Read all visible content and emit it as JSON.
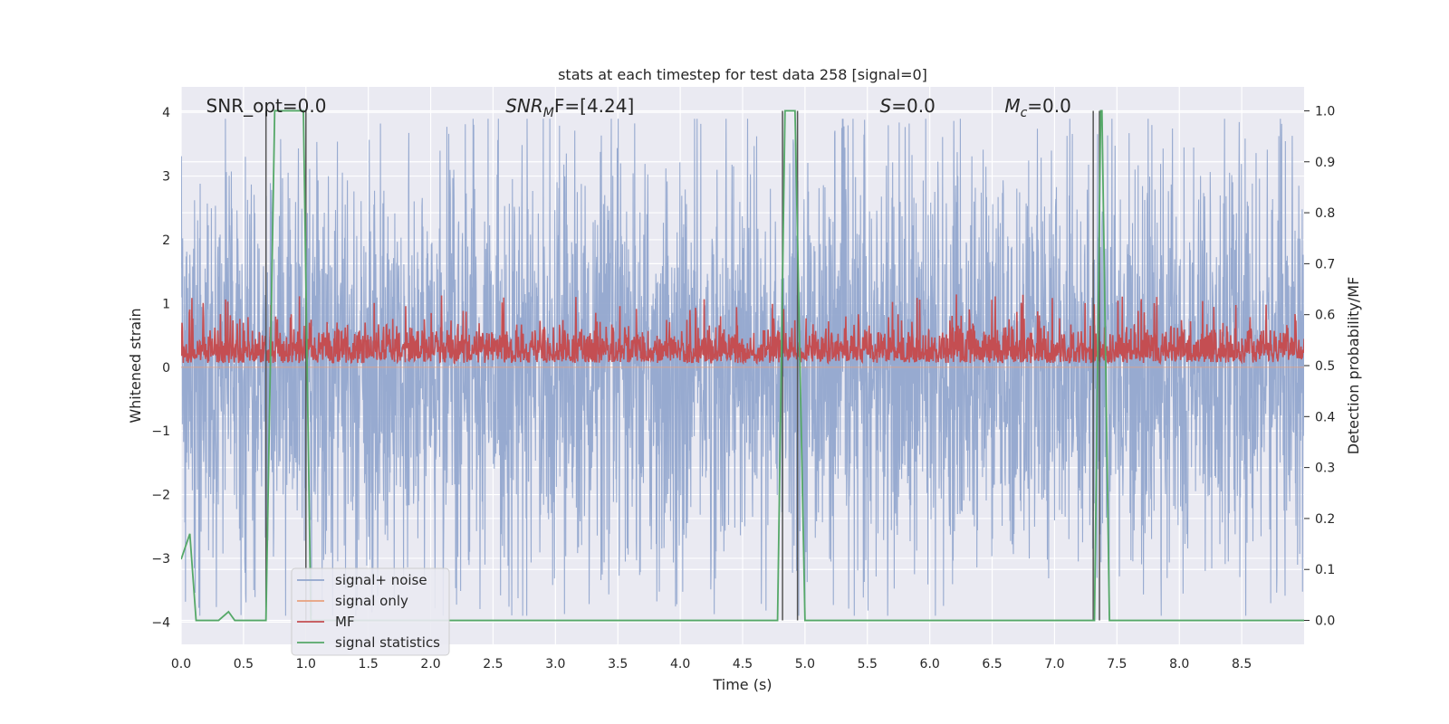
{
  "chart_data": {
    "type": "line",
    "title": "stats at each timestep for test data 258 [signal=0]",
    "xlabel": "Time (s)",
    "ylabel": "Whitened strain",
    "y2label": "Detection probability/MF",
    "xlim": [
      0,
      9.0
    ],
    "ylim": [
      -4.35,
      4.4
    ],
    "y2lim": [
      -0.047,
      1.047
    ],
    "xticks": [
      0.0,
      0.5,
      1.0,
      1.5,
      2.0,
      2.5,
      3.0,
      3.5,
      4.0,
      4.5,
      5.0,
      5.5,
      6.0,
      6.5,
      7.0,
      7.5,
      8.0,
      8.5
    ],
    "xtick_labels": [
      "0.0",
      "0.5",
      "1.0",
      "1.5",
      "2.0",
      "2.5",
      "3.0",
      "3.5",
      "4.0",
      "4.5",
      "5.0",
      "5.5",
      "6.0",
      "6.5",
      "7.0",
      "7.5",
      "8.0",
      "8.5"
    ],
    "yticks": [
      -4,
      -3,
      -2,
      -1,
      0,
      1,
      2,
      3,
      4
    ],
    "ytick_labels": [
      "−4",
      "−3",
      "−2",
      "−1",
      "0",
      "1",
      "2",
      "3",
      "4"
    ],
    "y2ticks": [
      0.0,
      0.1,
      0.2,
      0.3,
      0.4,
      0.5,
      0.6,
      0.7,
      0.8,
      0.9,
      1.0
    ],
    "y2tick_labels": [
      "0.0",
      "0.1",
      "0.2",
      "0.3",
      "0.4",
      "0.5",
      "0.6",
      "0.7",
      "0.8",
      "0.9",
      "1.0"
    ],
    "grid": true,
    "legend_position": "bottom-left",
    "annotations": [
      {
        "text": "SNR_opt=0.0",
        "x": 0.2
      },
      {
        "text": "SNR",
        "sub": "M",
        "tail": "F=[4.24]",
        "italic": true,
        "x": 2.6
      },
      {
        "text": "S",
        "tail": "=0.0",
        "italic": true,
        "x": 5.6
      },
      {
        "text": "M",
        "sub": "c",
        "tail": "=0.0",
        "italic": true,
        "x": 6.6
      }
    ],
    "series": [
      {
        "name": "signal+ noise",
        "color": "#92a6cd",
        "axis": "left",
        "kind": "noise",
        "amplitude_typical": 1.6,
        "amplitude_peak": 3.9,
        "range": [
          0,
          9.0
        ]
      },
      {
        "name": "signal only",
        "color": "#e8a17e",
        "axis": "left",
        "kind": "flat",
        "value": 0
      },
      {
        "name": "MF",
        "color": "#c44e52",
        "axis": "right",
        "kind": "band",
        "baseline": 0.5,
        "band_low": 0.5,
        "band_high": 0.6,
        "peak": 0.64
      },
      {
        "name": "signal statistics",
        "color": "#55a868",
        "axis": "right",
        "kind": "steps",
        "x": [
          0.0,
          0.07,
          0.12,
          0.3,
          0.38,
          0.43,
          0.68,
          0.75,
          0.98,
          1.04,
          4.5,
          4.63,
          4.78,
          4.84,
          4.92,
          5.0,
          7.32,
          7.37,
          7.38,
          7.44,
          9.0
        ],
        "y": [
          0.12,
          0.17,
          0.0,
          0.0,
          0.017,
          0.0,
          0.0,
          1.0,
          1.0,
          0.0,
          0.0,
          0.0,
          0.0,
          1.0,
          1.0,
          0.0,
          0.0,
          1.0,
          1.0,
          0.0,
          0.0
        ]
      }
    ],
    "vlines": {
      "color": "#555555",
      "x": [
        0.68,
        1.0,
        4.82,
        4.94,
        7.31,
        7.36
      ]
    }
  }
}
